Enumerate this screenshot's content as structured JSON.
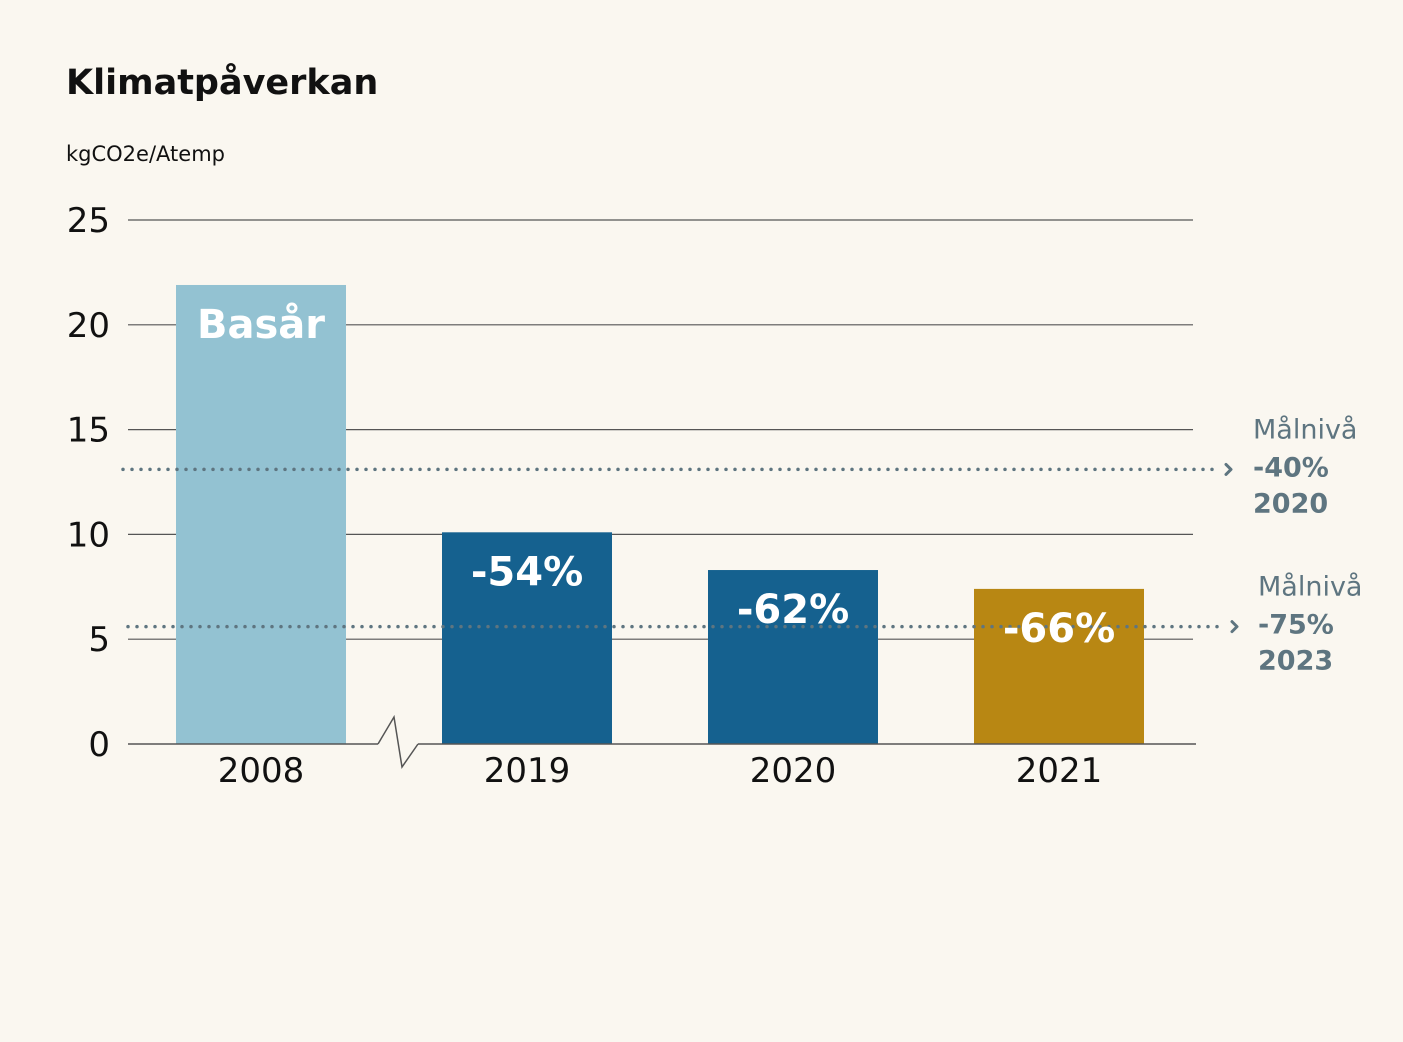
{
  "chart_data": {
    "type": "bar",
    "title": "Klimatpåverkan",
    "ylabel": "kgCO2e/Atemp",
    "xlabel": "",
    "ylim": [
      0,
      25
    ],
    "yticks": [
      0,
      5,
      10,
      15,
      20,
      25
    ],
    "grid": true,
    "axis_break_between": [
      "2008",
      "2019"
    ],
    "categories": [
      "2008",
      "2019",
      "2020",
      "2021"
    ],
    "values": [
      21.9,
      10.1,
      8.3,
      7.4
    ],
    "bar_labels": [
      "Basår",
      "-54%",
      "-62%",
      "-66%"
    ],
    "bar_colors": [
      "#93c2d2",
      "#15618f",
      "#15618f",
      "#b88713"
    ],
    "target_lines": [
      {
        "value": 13.1,
        "label": "Målnivå",
        "percent": "-40%",
        "year": "2020"
      },
      {
        "value": 5.6,
        "label": "Målnivå",
        "percent": "-75%",
        "year": "2023"
      }
    ],
    "colors": {
      "target": "#5e7580",
      "text": "#111111",
      "grid": "#555555"
    }
  }
}
